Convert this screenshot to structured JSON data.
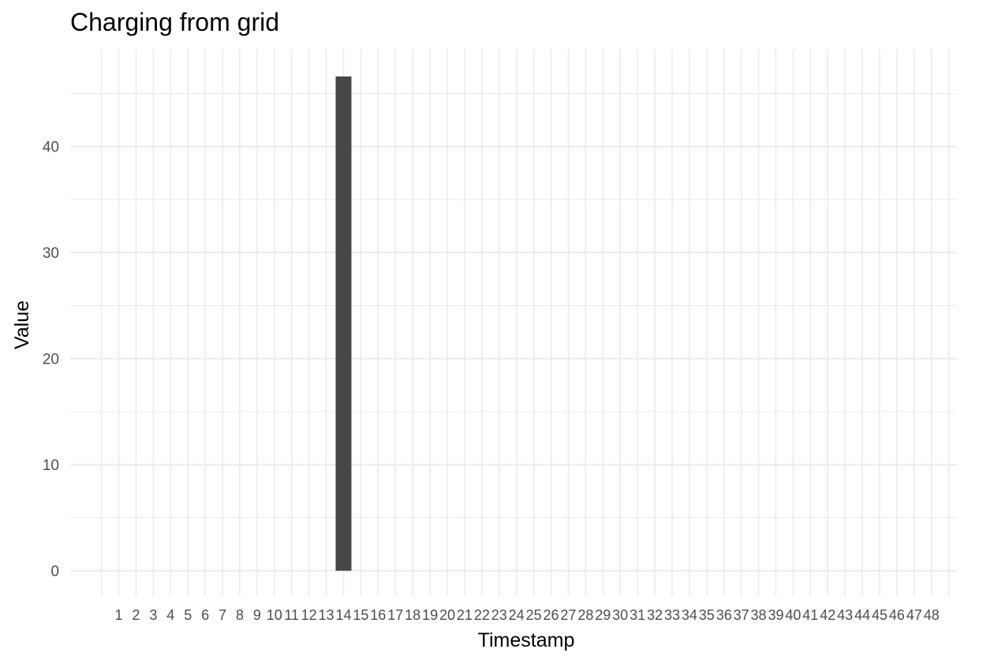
{
  "chart_data": {
    "type": "bar",
    "title": "Charging from grid",
    "xlabel": "Timestamp",
    "ylabel": "Value",
    "x_ticks": [
      "1",
      "2",
      "3",
      "4",
      "5",
      "6",
      "7",
      "8",
      "9",
      "10",
      "11",
      "12",
      "13",
      "14",
      "15",
      "16",
      "17",
      "18",
      "19",
      "20",
      "21",
      "22",
      "23",
      "24",
      "25",
      "26",
      "27",
      "28",
      "29",
      "30",
      "31",
      "32",
      "33",
      "34",
      "35",
      "36",
      "37",
      "38",
      "39",
      "40",
      "41",
      "42",
      "43",
      "44",
      "45",
      "46",
      "47",
      "48"
    ],
    "y_ticks": [
      0,
      10,
      20,
      30,
      40
    ],
    "ylim": [
      -2.4,
      49.2
    ],
    "grid": true,
    "bar_color": "#474747",
    "grid_color": "#ebebeb",
    "bars": [
      {
        "x": "14",
        "value": 46.6
      }
    ]
  }
}
